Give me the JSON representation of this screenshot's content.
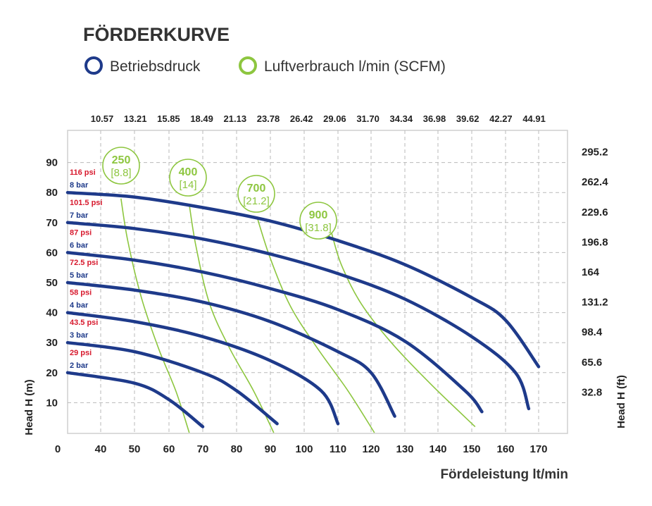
{
  "chart_data": {
    "type": "line",
    "title": "FÖRDERKURVE",
    "legend": [
      {
        "name": "Betriebsdruck",
        "color": "#1e3a8a"
      },
      {
        "name": "Luftverbrauch l/min (SCFM)",
        "color": "#8dc63f"
      }
    ],
    "xlabel": "Fördeleistung lt/min",
    "ylabel": "Head H (m)",
    "ylabel_right": "Head H (ft)",
    "xlim": [
      0,
      170
    ],
    "ylim": [
      0,
      95
    ],
    "x_ticks": [
      "0",
      "40",
      "50",
      "60",
      "70",
      "80",
      "90",
      "100",
      "110",
      "120",
      "130",
      "140",
      "150",
      "160",
      "170"
    ],
    "x_ticks_top": [
      "10.57",
      "13.21",
      "15.85",
      "18.49",
      "21.13",
      "23.78",
      "26.42",
      "29.06",
      "31.70",
      "34.34",
      "36.98",
      "39.62",
      "42.27",
      "44.91"
    ],
    "y_ticks": [
      "10",
      "20",
      "30",
      "40",
      "50",
      "60",
      "70",
      "80",
      "90"
    ],
    "y_ticks_right": [
      "32.8",
      "65.6",
      "98.4",
      "131.2",
      "164",
      "196.8",
      "229.6",
      "262.4",
      "295.2"
    ],
    "grid": true,
    "pressure_series": [
      {
        "bar": "2 bar",
        "psi": "29 psi",
        "x": [
          30,
          50,
          60,
          70
        ],
        "y": [
          20,
          16.5,
          11,
          2
        ]
      },
      {
        "bar": "3 bar",
        "psi": "43.5 psi",
        "x": [
          30,
          50,
          70,
          80,
          92
        ],
        "y": [
          30,
          27,
          20,
          14,
          3
        ]
      },
      {
        "bar": "4 bar",
        "psi": "58 psi",
        "x": [
          30,
          50,
          70,
          90,
          105,
          110
        ],
        "y": [
          40,
          37,
          32,
          24,
          14,
          3
        ]
      },
      {
        "bar": "5 bar",
        "psi": "72.5 psi",
        "x": [
          30,
          50,
          70,
          90,
          110,
          120,
          127
        ],
        "y": [
          50,
          47.5,
          43.5,
          37,
          27,
          20,
          5.5
        ]
      },
      {
        "bar": "6 bar",
        "psi": "87 psi",
        "x": [
          30,
          50,
          70,
          90,
          110,
          130,
          148,
          153
        ],
        "y": [
          60,
          57.5,
          53.5,
          48,
          41,
          30.5,
          14,
          7
        ]
      },
      {
        "bar": "7 bar",
        "psi": "101.5 psi",
        "x": [
          30,
          50,
          70,
          90,
          110,
          130,
          150,
          163,
          167
        ],
        "y": [
          70,
          68,
          64.5,
          59.5,
          53,
          44.5,
          32,
          20,
          8
        ]
      },
      {
        "bar": "8 bar",
        "psi": "116 psi",
        "x": [
          30,
          50,
          70,
          90,
          110,
          130,
          150,
          160,
          170
        ],
        "y": [
          80,
          78.5,
          75,
          70.5,
          64,
          56,
          45,
          37.5,
          22
        ]
      }
    ],
    "air_series": [
      {
        "value": "250",
        "scfm": "[8.8]",
        "x": [
          46,
          48,
          52,
          57,
          62,
          66
        ],
        "y": [
          78,
          64,
          45,
          28,
          14,
          0
        ]
      },
      {
        "value": "400",
        "scfm": "[14]",
        "x": [
          66,
          68,
          72,
          78,
          85,
          91
        ],
        "y": [
          76,
          62,
          43,
          28,
          14,
          0
        ]
      },
      {
        "value": "700",
        "scfm": "[21.2]",
        "x": [
          86,
          90,
          96,
          104,
          113,
          121
        ],
        "y": [
          72,
          58,
          42,
          28,
          14,
          0
        ]
      },
      {
        "value": "900",
        "scfm": "[31.8]",
        "x": [
          108,
          111,
          117,
          126,
          138,
          151
        ],
        "y": [
          67,
          56,
          43,
          30,
          16,
          2
        ]
      }
    ]
  }
}
